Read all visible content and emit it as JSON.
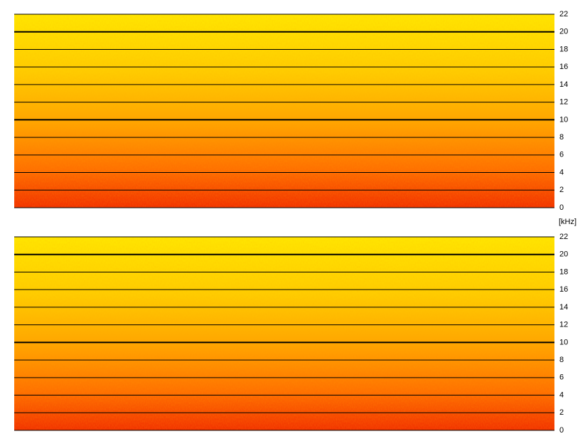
{
  "chart_data": [
    {
      "type": "spectrogram",
      "ylim": [
        0,
        22
      ],
      "yticks": [
        0,
        2,
        4,
        6,
        8,
        10,
        12,
        14,
        16,
        18,
        20,
        22
      ],
      "major_yticks": [
        10,
        20
      ],
      "ylabel": "[kHz]"
    },
    {
      "type": "spectrogram",
      "ylim": [
        0,
        22
      ],
      "yticks": [
        0,
        2,
        4,
        6,
        8,
        10,
        12,
        14,
        16,
        18,
        20,
        22
      ],
      "major_yticks": [
        10,
        20
      ]
    }
  ]
}
